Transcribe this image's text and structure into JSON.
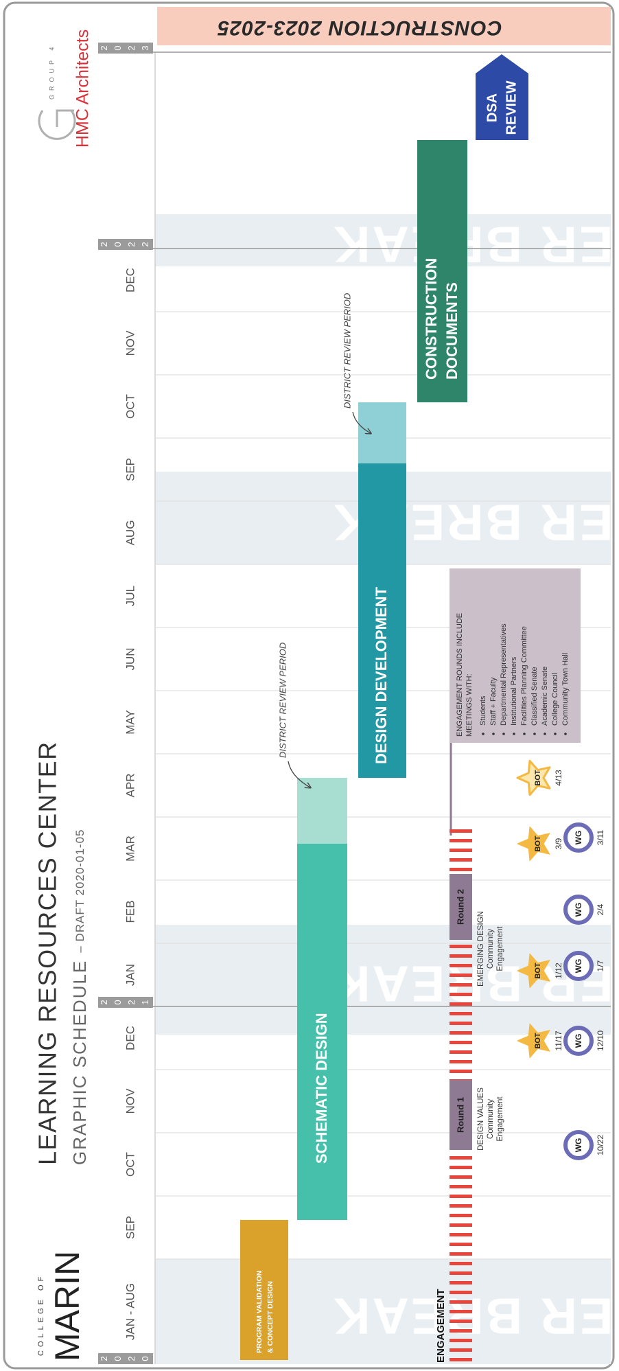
{
  "header": {
    "college_line": "COLLEGE OF",
    "college_name": "MARIN",
    "title": "LEARNING RESOURCES CENTER",
    "subtitle": "GRAPHIC SCHEDULE",
    "draft": "– DRAFT 2020-01-05",
    "firm_group": "GROUP 4",
    "firm_name": "HMC Architects"
  },
  "years": [
    "2020",
    "2021",
    "2022",
    "2023"
  ],
  "months": [
    "JAN - AUG",
    "SEP",
    "OCT",
    "NOV",
    "DEC",
    "JAN",
    "FEB",
    "MAR",
    "APR",
    "MAY",
    "JUN",
    "JUL",
    "AUG",
    "SEP",
    "OCT",
    "NOV",
    "DEC"
  ],
  "breaks": [
    "SUMMER BREAK",
    "WINTER BREAK",
    "SUMMER BREAK",
    "WINTER BREAK"
  ],
  "phases": [
    {
      "lines": [
        "PROGRAM VALIDATION",
        "& CONCEPT DESIGN"
      ]
    },
    {
      "lines": [
        "SCHEMATIC DESIGN"
      ]
    },
    {
      "lines": [
        "DESIGN DEVELOPMENT"
      ]
    },
    {
      "lines": [
        "CONSTRUCTION",
        "DOCUMENTS"
      ]
    },
    {
      "lines": [
        "DSA",
        "REVIEW"
      ]
    }
  ],
  "review_notes": [
    "DISTRICT REVIEW PERIOD",
    "DISTRICT REVIEW PERIOD"
  ],
  "construction": "CONSTRUCTION 2023-2025",
  "engagement": {
    "label": "ENGAGEMENT",
    "rounds": [
      {
        "name": "Round 1",
        "lines": [
          "DESIGN VALUES",
          "Community",
          "Engagement"
        ]
      },
      {
        "name": "Round 2",
        "lines": [
          "EMERGING DESIGN",
          "Community",
          "Engagement"
        ]
      }
    ],
    "note": {
      "lines": [
        "ENGAGEMENT ROUNDS INCLUDE",
        "MEETINGS WITH:"
      ],
      "items": [
        "Students",
        "Staff + Faculty",
        "Departmental Representatives",
        "Institutional Partners",
        "Facilities Planning Committee",
        "Classified Senate",
        "Academic Senate",
        "College Council",
        "Community Town Hall"
      ]
    }
  },
  "milestones": {
    "bot": {
      "label": "BOT",
      "dates": [
        "11/17",
        "1/12",
        "3/9",
        "4/13"
      ]
    },
    "wg": {
      "label": "WG",
      "dates": [
        "10/22",
        "12/10",
        "1/7",
        "2/4",
        "3/11"
      ]
    }
  }
}
